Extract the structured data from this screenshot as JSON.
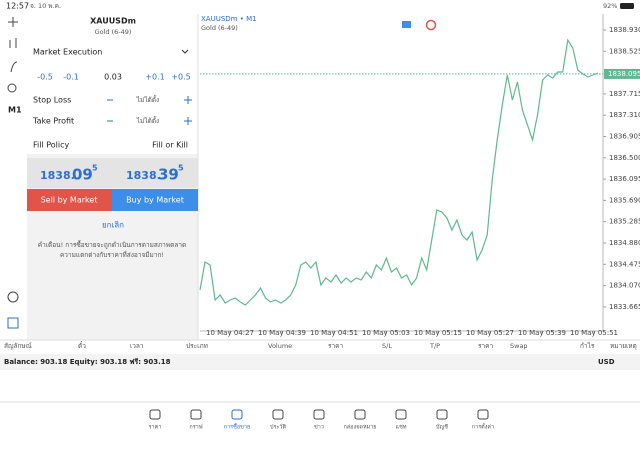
{
  "status": {
    "time": "12:57",
    "date": "จ. 10 พ.ค.",
    "battery": "92%"
  },
  "toolbar": {
    "timeframe": "M1"
  },
  "order": {
    "symbol": "XAUUSDm",
    "description": "Gold (6-49)",
    "execution": "Market Execution",
    "volume_steps": [
      "-0.5",
      "-0.1",
      "0.03",
      "+0.1",
      "+0.5"
    ],
    "stop_loss": {
      "label": "Stop Loss",
      "value": "ไม่ได้ตั้ง"
    },
    "take_profit": {
      "label": "Take Profit",
      "value": "ไม่ได้ตั้ง"
    },
    "fill_policy": {
      "label": "Fill Policy",
      "value": "Fill or Kill"
    },
    "bid": {
      "main": "1838.",
      "big": "09",
      "sup": "5"
    },
    "ask": {
      "main": "1838.",
      "big": "39",
      "sup": "5"
    },
    "sell": "Sell by Market",
    "buy": "Buy by Market",
    "cancel": "ยกเลิก",
    "warning": [
      "คำเตือน! การซื้อขายจะถูกดำเนินการตามสภาพตลาด",
      "ความแตกต่างกับราคาที่ส่งอาจมีมาก!"
    ]
  },
  "chart": {
    "type": "line",
    "title": "XAUUSDm • M1",
    "subtitle": "Gold (6-49)",
    "color": "#5fb892",
    "ylim": [
      1833.283,
      1839.234
    ],
    "yticks": [
      {
        "value": 1838.93,
        "label": "1838.930"
      },
      1838.525,
      1837.715,
      {
        "value": 1837.31,
        "label": "1837.310"
      },
      1836.905,
      {
        "value": 1836.5,
        "label": "1836.500"
      },
      1836.095,
      {
        "value": 1835.69,
        "label": "1835.690"
      },
      1835.285,
      {
        "value": 1834.88,
        "label": "1834.880"
      },
      1834.475,
      {
        "value": 1834.07,
        "label": "1834.070"
      },
      1833.665
    ],
    "current": {
      "value": 1838.095,
      "label": "1838.095"
    },
    "xlabels": [
      "10 May 04:27",
      "10 May 04:39",
      "10 May 04:51",
      "10 May 05:03",
      "10 May 05:15",
      "10 May 05:27",
      "10 May 05:39",
      "10 May 05:51"
    ],
    "values": [
      1833.986,
      1834.519,
      1834.462,
      1833.796,
      1833.891,
      1833.739,
      1833.796,
      1833.834,
      1833.758,
      1833.701,
      1833.796,
      1833.891,
      1834.024,
      1833.834,
      1833.758,
      1833.796,
      1833.739,
      1833.796,
      1833.891,
      1834.081,
      1834.462,
      1834.519,
      1834.405,
      1834.519,
      1834.081,
      1834.215,
      1834.138,
      1834.272,
      1834.119,
      1834.215,
      1834.138,
      1834.215,
      1834.176,
      1834.329,
      1834.215,
      1834.462,
      1834.367,
      1834.595,
      1834.329,
      1834.405,
      1834.215,
      1834.272,
      1834.081,
      1834.215,
      1834.595,
      1834.367,
      1834.937,
      1835.507,
      1835.469,
      1835.355,
      1835.127,
      1835.317,
      1835.032,
      1834.937,
      1835.089,
      1834.557,
      1834.747,
      1835.032,
      1836.078,
      1836.838,
      1837.504,
      1838.074,
      1837.599,
      1837.941,
      1837.409,
      1837.124,
      1836.838,
      1837.314,
      1837.979,
      1838.074,
      1838.017,
      1838.131,
      1838.131,
      1838.74,
      1838.588,
      1838.169,
      1838.093,
      1838.036,
      1838.074,
      1838.112
    ]
  },
  "table": {
    "columns": [
      "สัญลักษณ์",
      "ตั๋ว",
      "เวลา",
      "ประเภท",
      "Volume",
      "ราคา",
      "S/L",
      "T/P",
      "ราคา",
      "Swap",
      "กำไร",
      "หมายเหตุ"
    ]
  },
  "balance": {
    "text": "Balance: 903.18 Equity: 903.18 ฟรี: 903.18",
    "currency": "USD"
  },
  "nav": [
    "ราคา",
    "กราฟ",
    "การซื้อขาย",
    "ประวัติ",
    "ข่าว",
    "กล่องจดหมาย",
    "แชท",
    "บัญชี",
    "การตั้งค่า"
  ]
}
